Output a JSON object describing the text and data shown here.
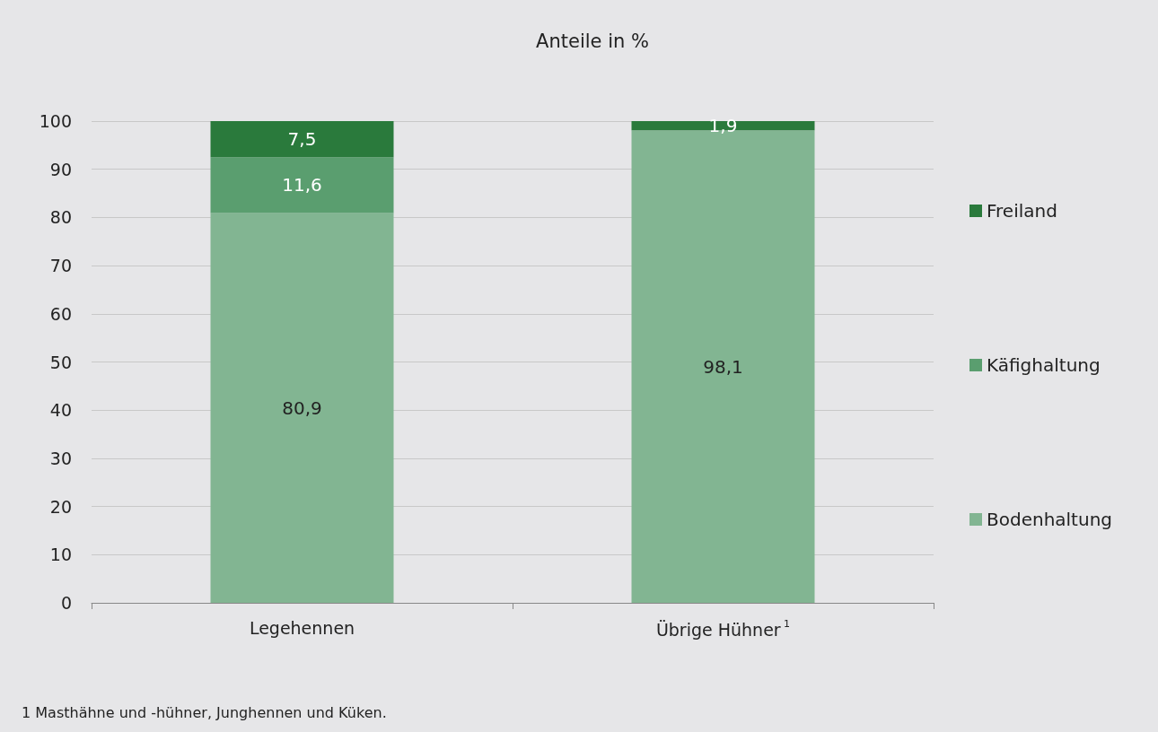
{
  "chart_data": {
    "type": "bar",
    "stacked": true,
    "title": "Anteile in %",
    "categories": [
      "Legehennen",
      "Übrige Hühner$^{1}$"
    ],
    "series": [
      {
        "name": "Bodenhaltung",
        "color": "#82b592",
        "values": [
          80.9,
          98.1
        ],
        "value_labels": [
          "80,9",
          "98,1"
        ]
      },
      {
        "name": "Käfighaltung",
        "color": "#5a9e6f",
        "values": [
          11.6,
          null
        ],
        "value_labels": [
          "11,6",
          null
        ]
      },
      {
        "name": "Freiland",
        "color": "#2a7a3c",
        "values": [
          7.5,
          1.9
        ],
        "value_labels": [
          "7,5",
          "1,9"
        ]
      }
    ],
    "ylim": [
      0,
      100
    ],
    "yticks": [
      0,
      10,
      20,
      30,
      40,
      50,
      60,
      70,
      80,
      90,
      100
    ],
    "grid": "y",
    "legend": "right",
    "annotations": [
      "1 Masthähne und -hühner, Junghennen und Küken."
    ]
  }
}
